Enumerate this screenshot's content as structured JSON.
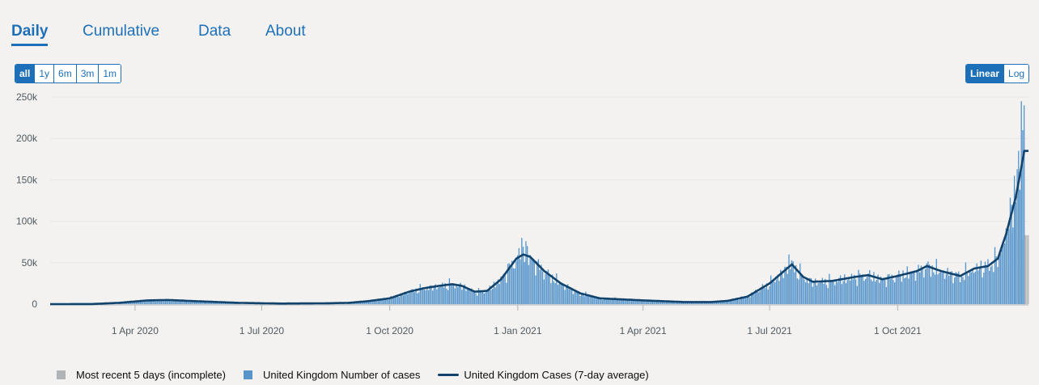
{
  "tabs": [
    {
      "label": "Daily",
      "active": true
    },
    {
      "label": "Cumulative",
      "active": false
    },
    {
      "label": "Data",
      "active": false
    },
    {
      "label": "About",
      "active": false
    }
  ],
  "range_buttons": [
    {
      "label": "all",
      "active": true
    },
    {
      "label": "1y",
      "active": false
    },
    {
      "label": "6m",
      "active": false
    },
    {
      "label": "3m",
      "active": false
    },
    {
      "label": "1m",
      "active": false
    }
  ],
  "scale_buttons": [
    {
      "label": "Linear",
      "active": true
    },
    {
      "label": "Log",
      "active": false
    }
  ],
  "legend": [
    {
      "label": "Most recent 5 days (incomplete)",
      "kind": "box",
      "color": "#b1b4b6"
    },
    {
      "label": "United Kingdom Number of cases",
      "kind": "box",
      "color": "#5694ca"
    },
    {
      "label": "United Kingdom Cases (7-day average)",
      "kind": "line",
      "color": "#12436d"
    }
  ],
  "colors": {
    "bars": "#5694ca",
    "incomplete_bars": "#b1b4b6",
    "average_line": "#12436d",
    "grid": "#e6e6e6",
    "axis_text": "#505a5f"
  },
  "chart_data": {
    "type": "bar",
    "title": "",
    "xlabel": "",
    "ylabel": "",
    "x_range": [
      "2020-01-31",
      "2022-01-03"
    ],
    "ylim": [
      0,
      250000
    ],
    "y_ticks": [
      0,
      50000,
      100000,
      150000,
      200000,
      250000
    ],
    "y_tick_labels": [
      "0",
      "50k",
      "100k",
      "150k",
      "200k",
      "250k"
    ],
    "x_ticks": [
      "2020-04-01",
      "2020-07-01",
      "2020-10-01",
      "2021-01-01",
      "2021-04-01",
      "2021-07-01",
      "2021-10-01"
    ],
    "x_tick_labels": [
      "1 Apr 2020",
      "1 Jul 2020",
      "1 Oct 2020",
      "1 Jan 2021",
      "1 Apr 2021",
      "1 Jul 2021",
      "1 Oct 2021"
    ],
    "grid": true,
    "legend_position": "bottom",
    "series": [
      {
        "name": "United Kingdom Cases (7-day average)",
        "type": "line",
        "points": [
          [
            "2020-01-31",
            0
          ],
          [
            "2020-03-01",
            100
          ],
          [
            "2020-03-20",
            1500
          ],
          [
            "2020-04-10",
            4500
          ],
          [
            "2020-04-25",
            5000
          ],
          [
            "2020-05-15",
            3500
          ],
          [
            "2020-06-15",
            1500
          ],
          [
            "2020-07-15",
            700
          ],
          [
            "2020-08-15",
            1000
          ],
          [
            "2020-09-01",
            1500
          ],
          [
            "2020-09-15",
            3500
          ],
          [
            "2020-10-01",
            7000
          ],
          [
            "2020-10-15",
            15000
          ],
          [
            "2020-10-25",
            19000
          ],
          [
            "2020-11-05",
            22000
          ],
          [
            "2020-11-15",
            24000
          ],
          [
            "2020-11-22",
            22000
          ],
          [
            "2020-12-01",
            15000
          ],
          [
            "2020-12-10",
            16000
          ],
          [
            "2020-12-20",
            30000
          ],
          [
            "2020-12-31",
            55000
          ],
          [
            "2021-01-05",
            60000
          ],
          [
            "2021-01-10",
            57000
          ],
          [
            "2021-01-20",
            40000
          ],
          [
            "2021-02-01",
            25000
          ],
          [
            "2021-02-15",
            13000
          ],
          [
            "2021-03-01",
            7000
          ],
          [
            "2021-04-01",
            4500
          ],
          [
            "2021-05-01",
            2500
          ],
          [
            "2021-05-20",
            2500
          ],
          [
            "2021-06-01",
            4000
          ],
          [
            "2021-06-15",
            9000
          ],
          [
            "2021-07-01",
            25000
          ],
          [
            "2021-07-10",
            38000
          ],
          [
            "2021-07-17",
            48000
          ],
          [
            "2021-07-25",
            33000
          ],
          [
            "2021-08-01",
            27000
          ],
          [
            "2021-08-15",
            28000
          ],
          [
            "2021-09-01",
            33000
          ],
          [
            "2021-09-10",
            35000
          ],
          [
            "2021-09-20",
            30000
          ],
          [
            "2021-10-01",
            34000
          ],
          [
            "2021-10-15",
            40000
          ],
          [
            "2021-10-22",
            46000
          ],
          [
            "2021-11-01",
            40000
          ],
          [
            "2021-11-15",
            34000
          ],
          [
            "2021-11-25",
            43000
          ],
          [
            "2021-12-05",
            46000
          ],
          [
            "2021-12-12",
            55000
          ],
          [
            "2021-12-18",
            85000
          ],
          [
            "2021-12-25",
            130000
          ],
          [
            "2021-12-31",
            185000
          ],
          [
            "2022-01-03",
            185000
          ]
        ]
      }
    ]
  }
}
